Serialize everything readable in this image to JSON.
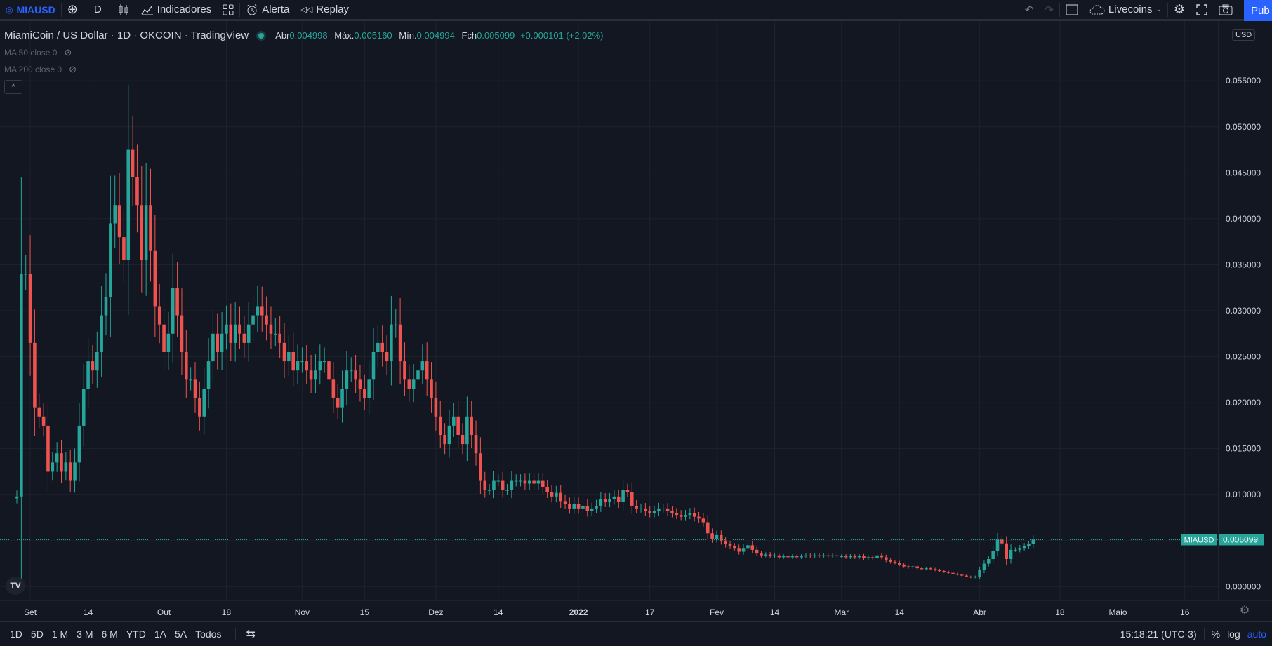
{
  "toolbar": {
    "symbol": "MIAUSD",
    "interval": "D",
    "indicators": "Indicadores",
    "alert": "Alerta",
    "replay": "Replay",
    "layout_name": "Livecoins",
    "publish": "Pub"
  },
  "legend": {
    "title": "MiamiCoin / US Dollar · 1D · OKCOIN · TradingView",
    "open_label": "Abr",
    "open": "0.004998",
    "high_label": "Máx.",
    "high": "0.005160",
    "low_label": "Mín.",
    "low": "0.004994",
    "close_label": "Fch",
    "close": "0.005099",
    "change": "+0.000101 (+2.02%)",
    "ma50": "MA 50 close 0",
    "ma200": "MA 200 close 0"
  },
  "currency": "USD",
  "bottom": {
    "ranges": [
      "1D",
      "5D",
      "1 M",
      "3 M",
      "6 M",
      "YTD",
      "1A",
      "5A",
      "Todos"
    ],
    "time": "15:18:21 (UTC-3)",
    "percent": "%",
    "log": "log",
    "auto": "auto"
  },
  "colors": {
    "up": "#26a69a",
    "down": "#ef5350",
    "background": "#131722",
    "grid": "#1e222d",
    "accent": "#2962ff"
  },
  "chart_data": {
    "type": "candlestick",
    "symbol": "MIAUSD",
    "pair": "MiamiCoin / US Dollar",
    "exchange": "OKCOIN",
    "interval": "1D",
    "ylim": [
      -0.0015,
      0.0615
    ],
    "y_ticks": [
      "0.000000",
      "0.005000",
      "0.010000",
      "0.015000",
      "0.020000",
      "0.025000",
      "0.030000",
      "0.035000",
      "0.040000",
      "0.045000",
      "0.050000",
      "0.055000"
    ],
    "x_ticks": [
      "Set",
      "14",
      "Out",
      "18",
      "Nov",
      "15",
      "Dez",
      "14",
      "2022",
      "17",
      "Fev",
      "14",
      "Mar",
      "14",
      "Abr",
      "18",
      "Maio",
      "16"
    ],
    "x_tick_days": [
      3,
      16,
      33,
      47,
      64,
      78,
      94,
      108,
      126,
      142,
      157,
      170,
      185,
      198,
      216,
      234,
      247,
      262
    ],
    "last_price_label": "MIAUSD",
    "last_price": 0.005099,
    "closes": [
      0.0098,
      0.034,
      0.034,
      0.0265,
      0.0195,
      0.0185,
      0.0175,
      0.0125,
      0.0135,
      0.0145,
      0.0125,
      0.0135,
      0.0115,
      0.0135,
      0.0175,
      0.0215,
      0.0245,
      0.0235,
      0.0255,
      0.0295,
      0.0315,
      0.0395,
      0.0415,
      0.038,
      0.0355,
      0.0475,
      0.0445,
      0.0415,
      0.0355,
      0.0415,
      0.0365,
      0.0305,
      0.0285,
      0.0255,
      0.0275,
      0.0325,
      0.0295,
      0.0255,
      0.0225,
      0.0225,
      0.0205,
      0.0185,
      0.0215,
      0.0245,
      0.0275,
      0.0255,
      0.0275,
      0.0285,
      0.0265,
      0.0285,
      0.0275,
      0.0265,
      0.0285,
      0.0295,
      0.0305,
      0.0295,
      0.0285,
      0.0275,
      0.0275,
      0.0265,
      0.0245,
      0.0255,
      0.0235,
      0.0245,
      0.0245,
      0.0235,
      0.0225,
      0.0235,
      0.0245,
      0.0245,
      0.0225,
      0.0205,
      0.0195,
      0.0215,
      0.0235,
      0.0235,
      0.0225,
      0.0215,
      0.0205,
      0.0225,
      0.0255,
      0.0265,
      0.0255,
      0.0245,
      0.0285,
      0.0285,
      0.0245,
      0.0225,
      0.0215,
      0.0225,
      0.0235,
      0.0245,
      0.0225,
      0.0205,
      0.0185,
      0.0165,
      0.0155,
      0.0175,
      0.0185,
      0.0165,
      0.0155,
      0.0185,
      0.0165,
      0.0145,
      0.0115,
      0.0105,
      0.0105,
      0.0115,
      0.0115,
      0.0105,
      0.0105,
      0.0115,
      0.0115,
      0.0115,
      0.0112,
      0.0115,
      0.0112,
      0.0115,
      0.0108,
      0.0103,
      0.0098,
      0.0102,
      0.0093,
      0.009,
      0.0085,
      0.009,
      0.0085,
      0.0088,
      0.0082,
      0.0085,
      0.0088,
      0.0095,
      0.0092,
      0.0095,
      0.0098,
      0.0092,
      0.0105,
      0.0103,
      0.0088,
      0.0085,
      0.0085,
      0.0082,
      0.008,
      0.0082,
      0.0085,
      0.0085,
      0.0082,
      0.008,
      0.0078,
      0.0076,
      0.0078,
      0.008,
      0.0076,
      0.0074,
      0.007,
      0.0058,
      0.0052,
      0.0056,
      0.005,
      0.0046,
      0.0044,
      0.0042,
      0.0038,
      0.0042,
      0.0045,
      0.004,
      0.0036,
      0.0034,
      0.0035,
      0.0033,
      0.0034,
      0.0032,
      0.0033,
      0.0032,
      0.0033,
      0.0032,
      0.0033,
      0.0034,
      0.0033,
      0.0034,
      0.0033,
      0.0034,
      0.0033,
      0.0034,
      0.0033,
      0.0033,
      0.0032,
      0.0033,
      0.0032,
      0.0033,
      0.0031,
      0.0032,
      0.0031,
      0.0034,
      0.0032,
      0.0029,
      0.0027,
      0.0026,
      0.0024,
      0.0022,
      0.0021,
      0.0022,
      0.002,
      0.0019,
      0.002,
      0.0019,
      0.0018,
      0.0017,
      0.0016,
      0.0015,
      0.0014,
      0.0013,
      0.0012,
      0.0011,
      0.001,
      0.0011,
      0.0018,
      0.0025,
      0.003,
      0.0039,
      0.0051,
      0.0047,
      0.003,
      0.004,
      0.004,
      0.0042,
      0.0044,
      0.0046,
      0.005099
    ]
  }
}
